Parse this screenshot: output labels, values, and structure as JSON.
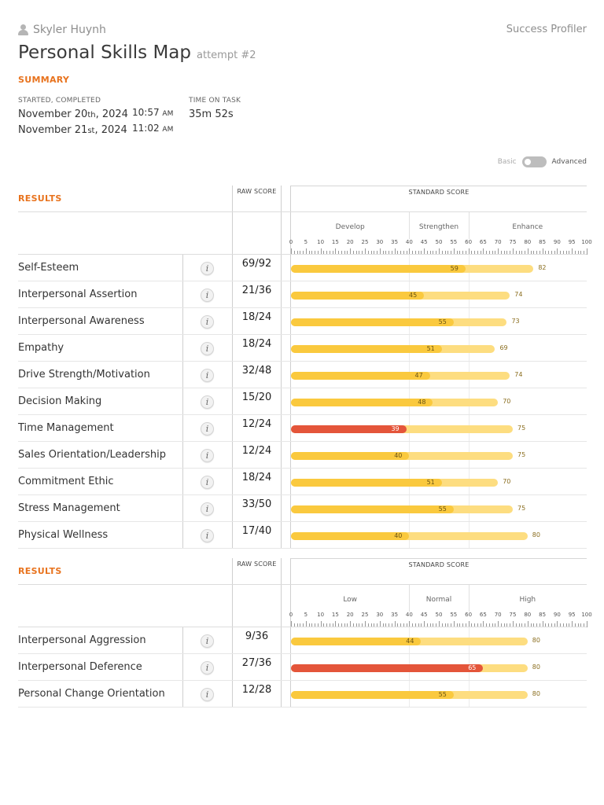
{
  "header": {
    "user_name": "Skyler Huynh",
    "app_name": "Success Profiler",
    "title": "Personal Skills Map",
    "attempt": "attempt #2"
  },
  "summary": {
    "label": "SUMMARY",
    "started_completed_caption": "STARTED, COMPLETED",
    "time_caption": "TIME ON TASK",
    "start_date": {
      "prefix": "November 20",
      "suffix": "th",
      "year": ", 2024"
    },
    "end_date": {
      "prefix": "November 21",
      "suffix": "st",
      "year": ", 2024"
    },
    "start_time": "10:57",
    "start_ampm": "AM",
    "end_time": "11:02",
    "end_ampm": "AM",
    "time_on_task": "35m 52s"
  },
  "toggle": {
    "basic": "Basic",
    "advanced": "Advanced"
  },
  "colors": {
    "accent": "#e8731e",
    "bar": "#fac93e",
    "bar_max": "#fddd80",
    "bar_low": "#e4553a"
  },
  "scale_ticks": [
    0,
    5,
    10,
    15,
    20,
    25,
    30,
    35,
    40,
    45,
    50,
    55,
    60,
    65,
    70,
    75,
    80,
    85,
    90,
    95,
    100
  ],
  "sections": [
    {
      "results_label": "RESULTS",
      "raw_header": "RAW SCORE",
      "std_header": "STANDARD SCORE",
      "bands": [
        "Develop",
        "Strengthen",
        "Enhance"
      ],
      "rows": [
        {
          "label": "Self-Esteem",
          "raw": "69/92",
          "score": 59,
          "max": 82,
          "low": false
        },
        {
          "label": "Interpersonal Assertion",
          "raw": "21/36",
          "score": 45,
          "max": 74,
          "low": false
        },
        {
          "label": "Interpersonal Awareness",
          "raw": "18/24",
          "score": 55,
          "max": 73,
          "low": false
        },
        {
          "label": "Empathy",
          "raw": "18/24",
          "score": 51,
          "max": 69,
          "low": false
        },
        {
          "label": "Drive Strength/Motivation",
          "raw": "32/48",
          "score": 47,
          "max": 74,
          "low": false
        },
        {
          "label": "Decision Making",
          "raw": "15/20",
          "score": 48,
          "max": 70,
          "low": false
        },
        {
          "label": "Time Management",
          "raw": "12/24",
          "score": 39,
          "max": 75,
          "low": true
        },
        {
          "label": "Sales Orientation/Leadership",
          "raw": "12/24",
          "score": 40,
          "max": 75,
          "low": false
        },
        {
          "label": "Commitment Ethic",
          "raw": "18/24",
          "score": 51,
          "max": 70,
          "low": false
        },
        {
          "label": "Stress Management",
          "raw": "33/50",
          "score": 55,
          "max": 75,
          "low": false
        },
        {
          "label": "Physical Wellness",
          "raw": "17/40",
          "score": 40,
          "max": 80,
          "low": false
        }
      ]
    },
    {
      "results_label": "RESULTS",
      "raw_header": "RAW SCORE",
      "std_header": "STANDARD SCORE",
      "bands": [
        "Low",
        "Normal",
        "High"
      ],
      "rows": [
        {
          "label": "Interpersonal Aggression",
          "raw": "9/36",
          "score": 44,
          "max": 80,
          "low": false
        },
        {
          "label": "Interpersonal Deference",
          "raw": "27/36",
          "score": 65,
          "max": 80,
          "low": true
        },
        {
          "label": "Personal Change Orientation",
          "raw": "12/28",
          "score": 55,
          "max": 80,
          "low": false
        }
      ]
    }
  ],
  "info_glyph": "i"
}
